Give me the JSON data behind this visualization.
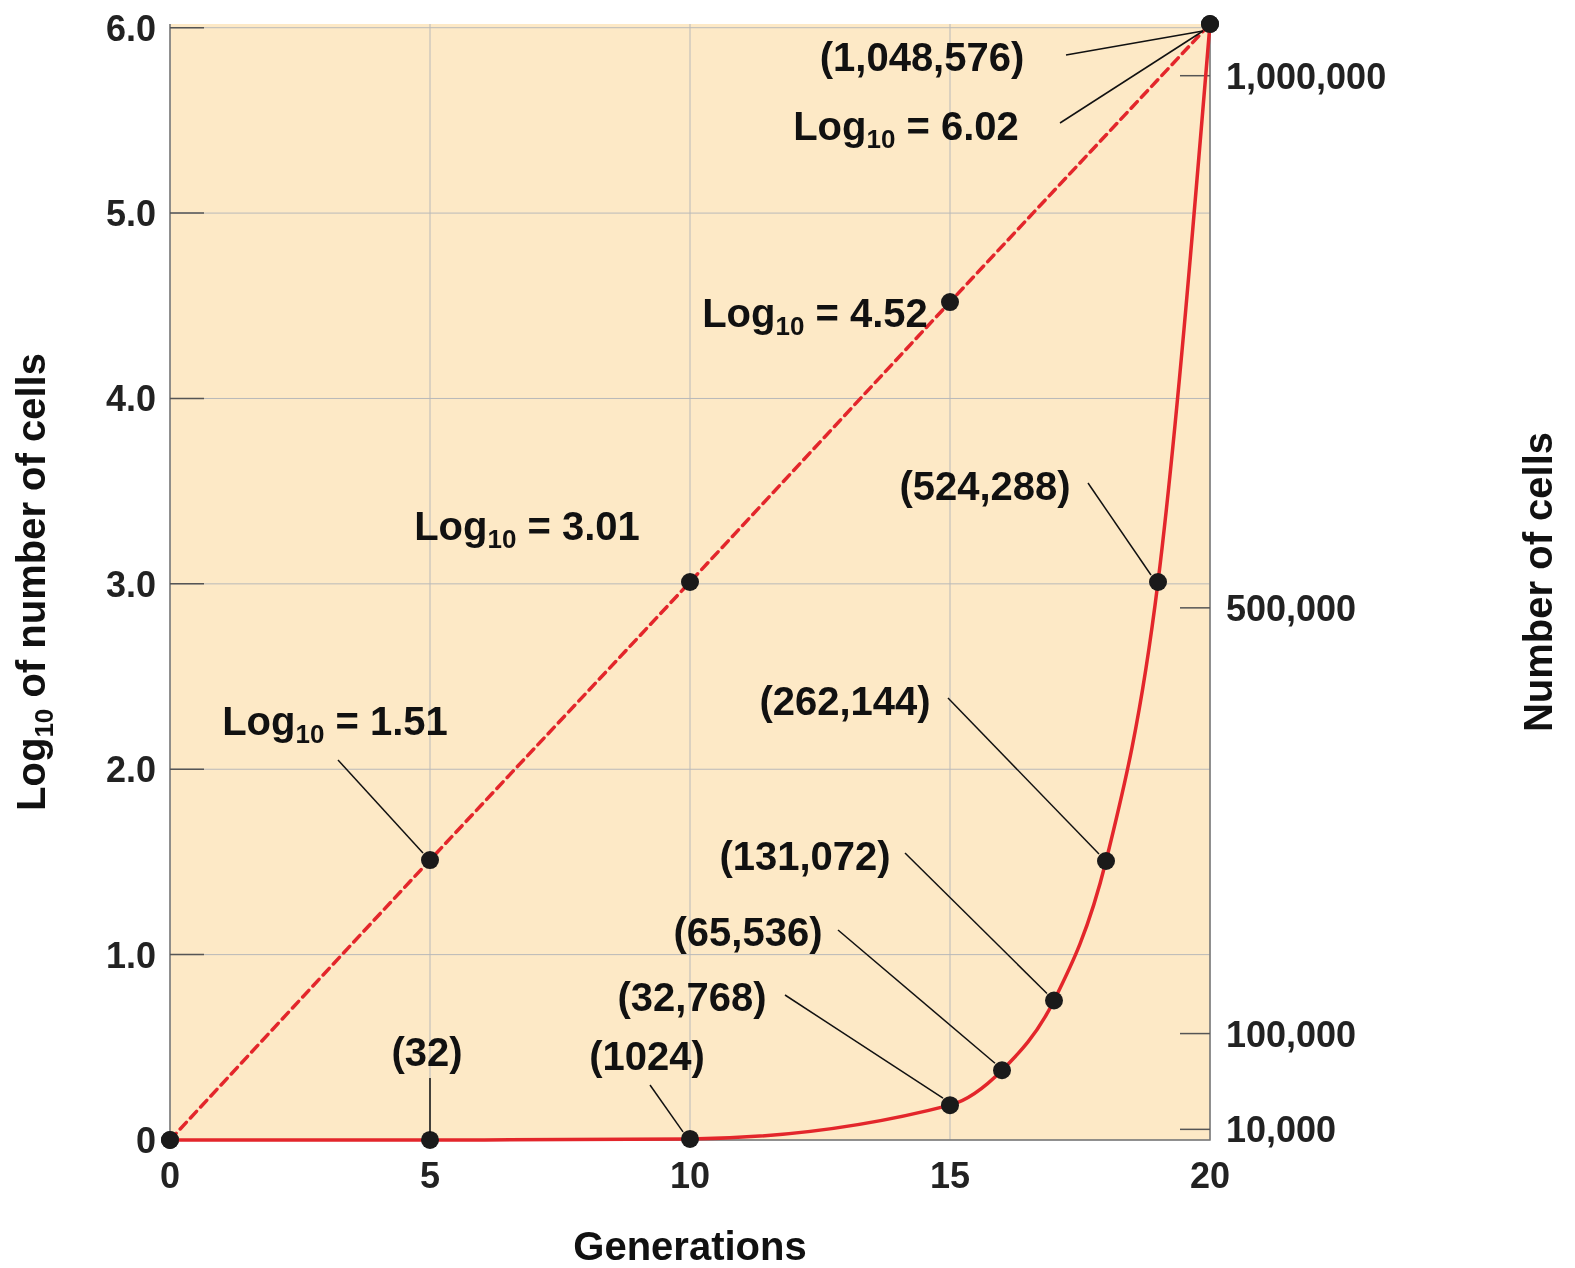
{
  "chart_data": {
    "type": "line",
    "xlabel": "Generations",
    "ylabel": "Log$_{10}$ of number of cells",
    "y2label": "Number of cells",
    "xlim": [
      0,
      20
    ],
    "xticks": [
      0,
      5,
      10,
      15,
      20
    ],
    "ylim": [
      0,
      6.02
    ],
    "yticks": [
      {
        "value": 0,
        "label": "0"
      },
      {
        "value": 1,
        "label": "1.0"
      },
      {
        "value": 2,
        "label": "2.0"
      },
      {
        "value": 3,
        "label": "3.0"
      },
      {
        "value": 4,
        "label": "4.0"
      },
      {
        "value": 5,
        "label": "5.0"
      },
      {
        "value": 6,
        "label": "6.0"
      }
    ],
    "y2lim": [
      0,
      1048576
    ],
    "y2ticks": [
      {
        "value": 10000,
        "label": "10,000"
      },
      {
        "value": 100000,
        "label": "100,000"
      },
      {
        "value": 500000,
        "label": "500,000"
      },
      {
        "value": 1000000,
        "label": "1,000,000"
      }
    ],
    "grid": true,
    "marker": "circle",
    "series": [
      {
        "color": "#e3262b",
        "line_style": "dashed",
        "x": [
          0,
          5,
          10,
          15,
          20
        ],
        "values": [
          0,
          1.51,
          3.01,
          4.52,
          6.02
        ],
        "value_labels": [
          null,
          "Log$_{10}$ = 1.51",
          "Log$_{10}$ = 3.01",
          "Log$_{10}$ = 4.52",
          "Log$_{10}$ = 6.02"
        ]
      },
      {
        "color": "#e3262b",
        "line_style": "solid",
        "axis": "y2",
        "x": [
          0,
          5,
          10,
          15,
          16,
          17,
          18,
          19,
          20
        ],
        "values": [
          0,
          32,
          1024,
          32768,
          65536,
          131072,
          262144,
          524288,
          1048576
        ],
        "value_labels": [
          null,
          "(32)",
          "(1024)",
          "(32,768)",
          "(65,536)",
          "(131,072)",
          "(262,144)",
          "(524,288)",
          "(1,048,576)"
        ]
      }
    ]
  }
}
